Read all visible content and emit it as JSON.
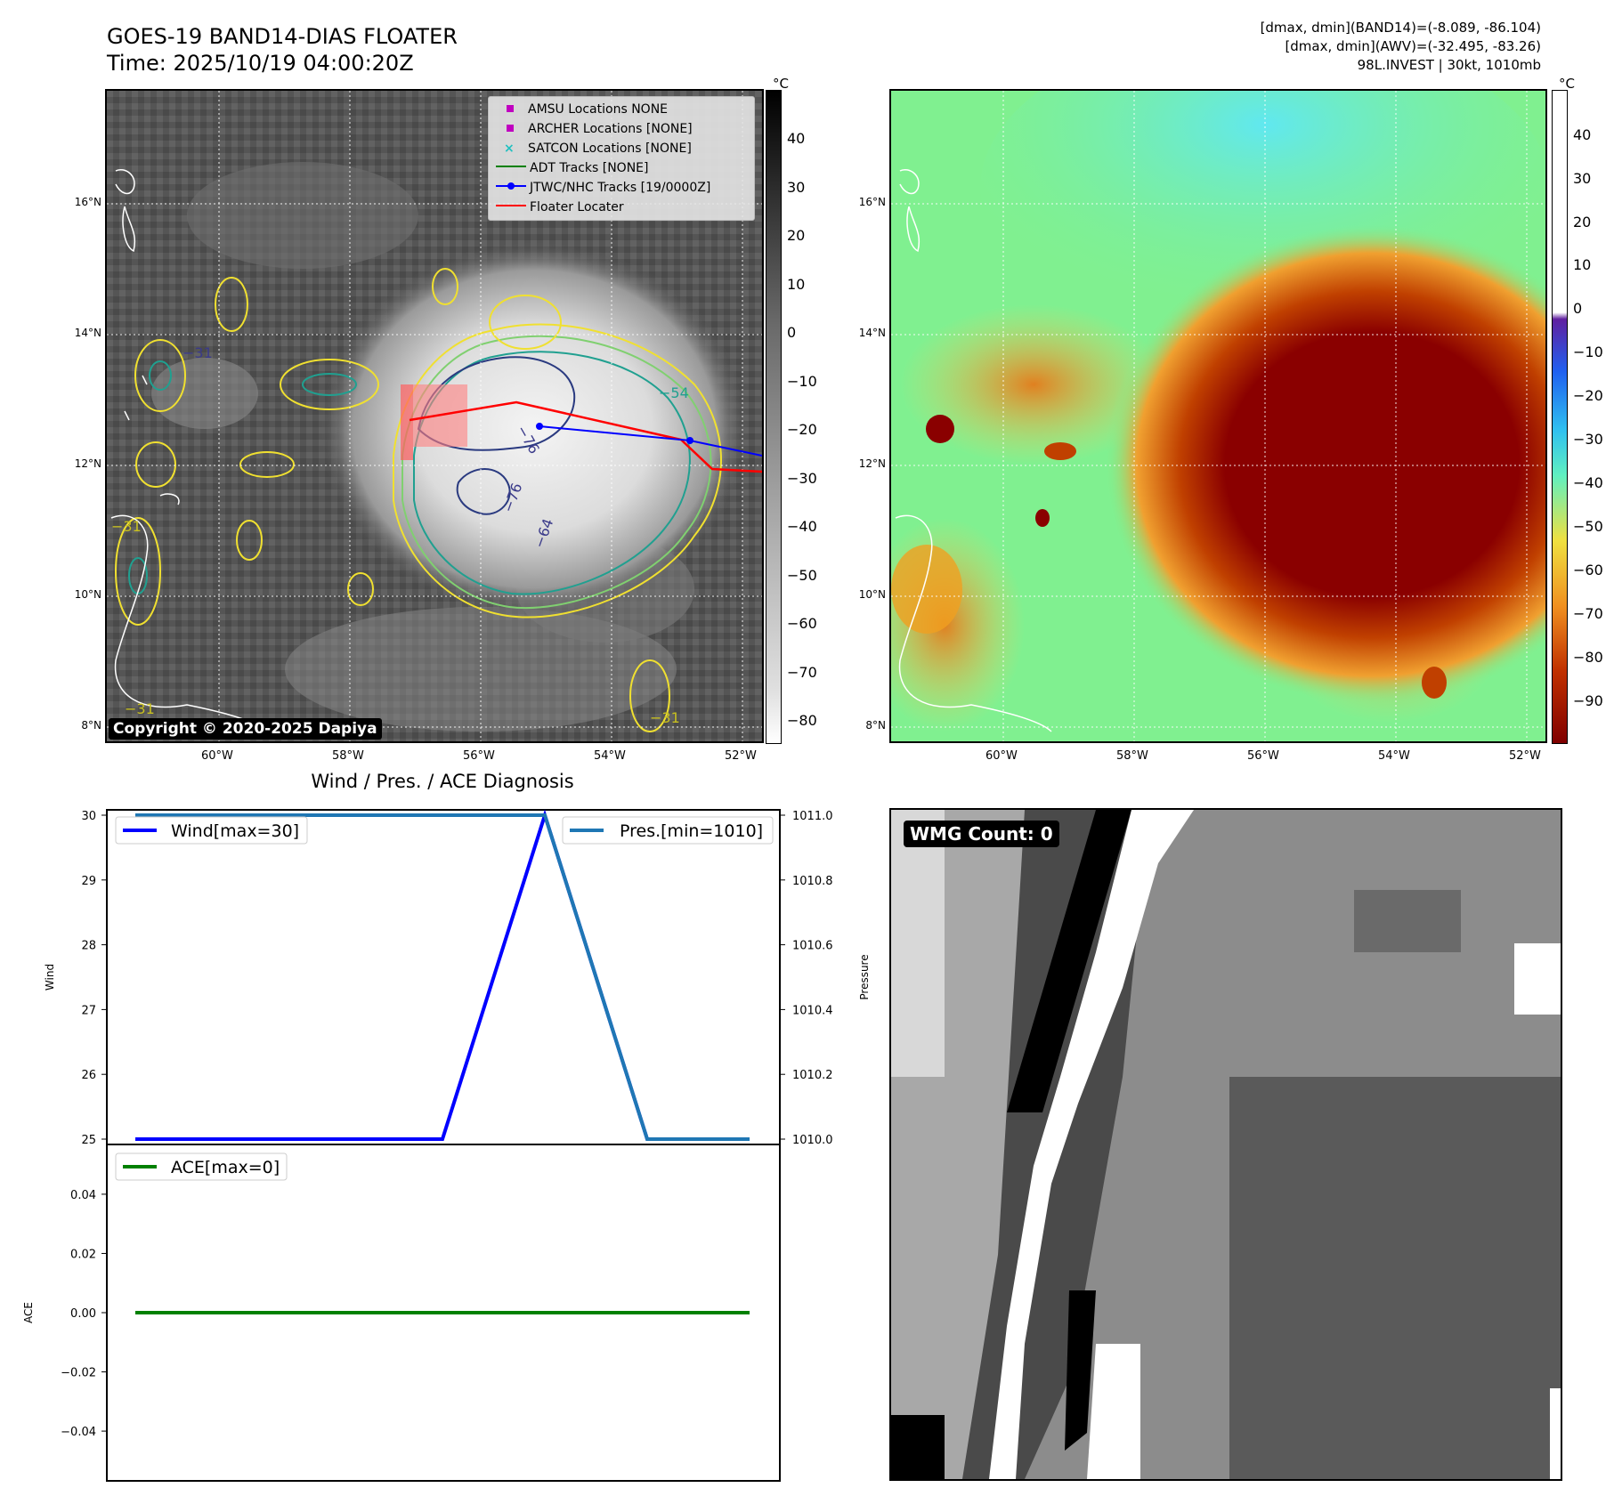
{
  "header": {
    "title": "GOES-19 BAND14-DIAS FLOATER",
    "time": "Time: 2025/10/19 04:00:20Z",
    "meta_band14": "[dmax, dmin](BAND14)=(-8.089, -86.104)",
    "meta_awv": "[dmax, dmin](AWV)=(-32.495, -83.26)",
    "meta_storm": "98L.INVEST | 30kt, 1010mb"
  },
  "map_axes": {
    "lat_ticks": [
      "16°N",
      "14°N",
      "12°N",
      "10°N",
      "8°N"
    ],
    "lon_ticks": [
      "60°W",
      "58°W",
      "56°W",
      "54°W",
      "52°W"
    ]
  },
  "left_map": {
    "colorbar_unit": "°C",
    "colorbar_ticks": [
      "40",
      "30",
      "20",
      "10",
      "0",
      "−10",
      "−20",
      "−30",
      "−40",
      "−50",
      "−60",
      "−70",
      "−80"
    ],
    "contour_labels": [
      "−31",
      "−31",
      "−31",
      "−31",
      "−64",
      "−76",
      "−54",
      "−76"
    ],
    "legend": [
      {
        "label": "AMSU Locations NONE",
        "color": "#c000c0",
        "marker": "square"
      },
      {
        "label": "ARCHER Locations [NONE]",
        "color": "#c000c0",
        "marker": "square"
      },
      {
        "label": "SATCON Locations [NONE]",
        "color": "#20c0c0",
        "marker": "x"
      },
      {
        "label": "ADT Tracks [NONE]",
        "color": "#008000",
        "marker": "line"
      },
      {
        "label": "JTWC/NHC Tracks [19/0000Z]",
        "color": "#0000ff",
        "marker": "line-dot"
      },
      {
        "label": "Floater Locater",
        "color": "#ff0000",
        "marker": "line"
      }
    ],
    "copyright": "Copyright © 2020-2025 Dapiya"
  },
  "right_map": {
    "colorbar_unit": "°C",
    "colorbar_ticks": [
      "40",
      "30",
      "20",
      "10",
      "0",
      "−10",
      "−20",
      "−30",
      "−40",
      "−50",
      "−60",
      "−70",
      "−80",
      "−90"
    ]
  },
  "wmg_panel": {
    "label": "WMG Count: 0"
  },
  "chart_data": [
    {
      "type": "line",
      "title": "Wind / Pres. / ACE Diagnosis",
      "ylabel": "Wind",
      "y2label": "Pressure",
      "ylim": [
        25,
        30
      ],
      "y2lim": [
        1010.0,
        1011.0
      ],
      "yticks": [
        "30",
        "29",
        "28",
        "27",
        "26",
        "25"
      ],
      "y2ticks": [
        "1011.0",
        "1010.8",
        "1010.6",
        "1010.4",
        "1010.2",
        "1010.0"
      ],
      "x": [
        0,
        1,
        2,
        3,
        4,
        5,
        6
      ],
      "series": [
        {
          "name": "Wind[max=30]",
          "axis": "left",
          "color": "#0000ff",
          "values": [
            25,
            25,
            25,
            25,
            30,
            25,
            25
          ]
        },
        {
          "name": "Pres.[min=1010]",
          "axis": "right",
          "color": "#1f77b4",
          "values": [
            1011.0,
            1011.0,
            1011.0,
            1011.0,
            1011.0,
            1010.0,
            1010.0
          ]
        }
      ],
      "legend": [
        "top-left",
        "top-right"
      ]
    },
    {
      "type": "line",
      "ylabel": "ACE",
      "ylim": [
        -0.055,
        0.055
      ],
      "yticks": [
        "0.04",
        "0.02",
        "0.00",
        "−0.02",
        "−0.04"
      ],
      "ytick_values": [
        0.04,
        0.02,
        0.0,
        -0.02,
        -0.04
      ],
      "x": [
        0,
        1,
        2,
        3,
        4,
        5,
        6
      ],
      "series": [
        {
          "name": "ACE[max=0]",
          "color": "#008000",
          "values": [
            0,
            0,
            0,
            0,
            0,
            0,
            0
          ]
        }
      ],
      "legend": "top-left"
    }
  ]
}
